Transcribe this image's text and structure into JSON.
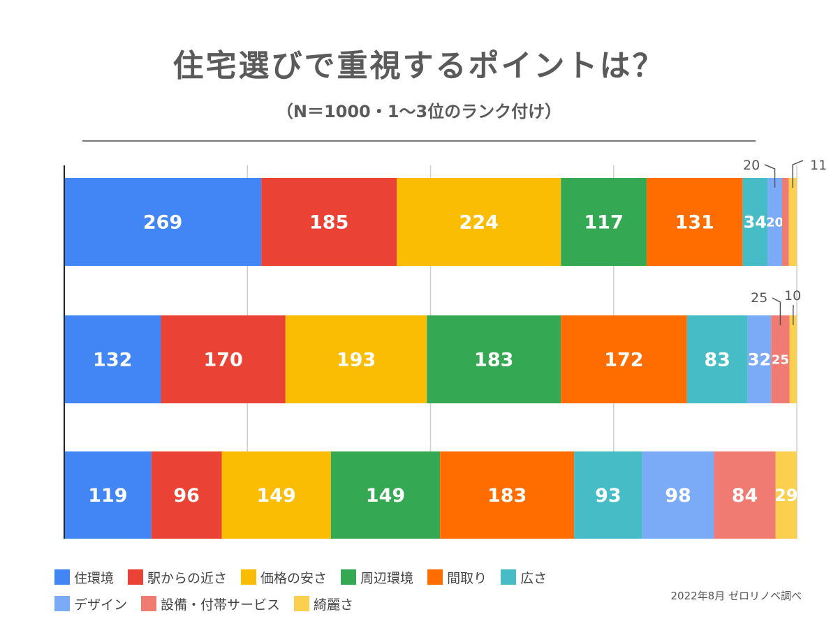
{
  "chart_data": {
    "type": "bar",
    "orientation": "horizontal",
    "stacked": true,
    "title": "住宅選びで重視するポイントは？",
    "subtitle": "（N＝1000・1〜3位のランク付け）",
    "xlim": [
      0,
      1000
    ],
    "grid": true,
    "legend_position": "bottom-left",
    "categories": [
      "",
      "",
      ""
    ],
    "series": [
      {
        "name": "住環境",
        "color": "#4285f4",
        "values": [
          269,
          132,
          119
        ]
      },
      {
        "name": "駅からの近さ",
        "color": "#ea4335",
        "values": [
          185,
          170,
          96
        ]
      },
      {
        "name": "価格の安さ",
        "color": "#fbbc04",
        "values": [
          224,
          193,
          149
        ]
      },
      {
        "name": "周辺環境",
        "color": "#34a853",
        "values": [
          117,
          183,
          149
        ]
      },
      {
        "name": "間取り",
        "color": "#ff6d01",
        "values": [
          131,
          172,
          183
        ]
      },
      {
        "name": "広さ",
        "color": "#46bdc6",
        "values": [
          34,
          83,
          93
        ]
      },
      {
        "name": "デザイン",
        "color": "#7baaf7",
        "values": [
          20,
          32,
          98
        ]
      },
      {
        "name": "設備・付帯サービス",
        "color": "#f07b72",
        "values": [
          9,
          25,
          84
        ]
      },
      {
        "name": "綺麗さ",
        "color": "#fcd04f",
        "values": [
          11,
          10,
          29
        ]
      }
    ]
  },
  "source": "2022年8月 ゼロリノベ調べ"
}
